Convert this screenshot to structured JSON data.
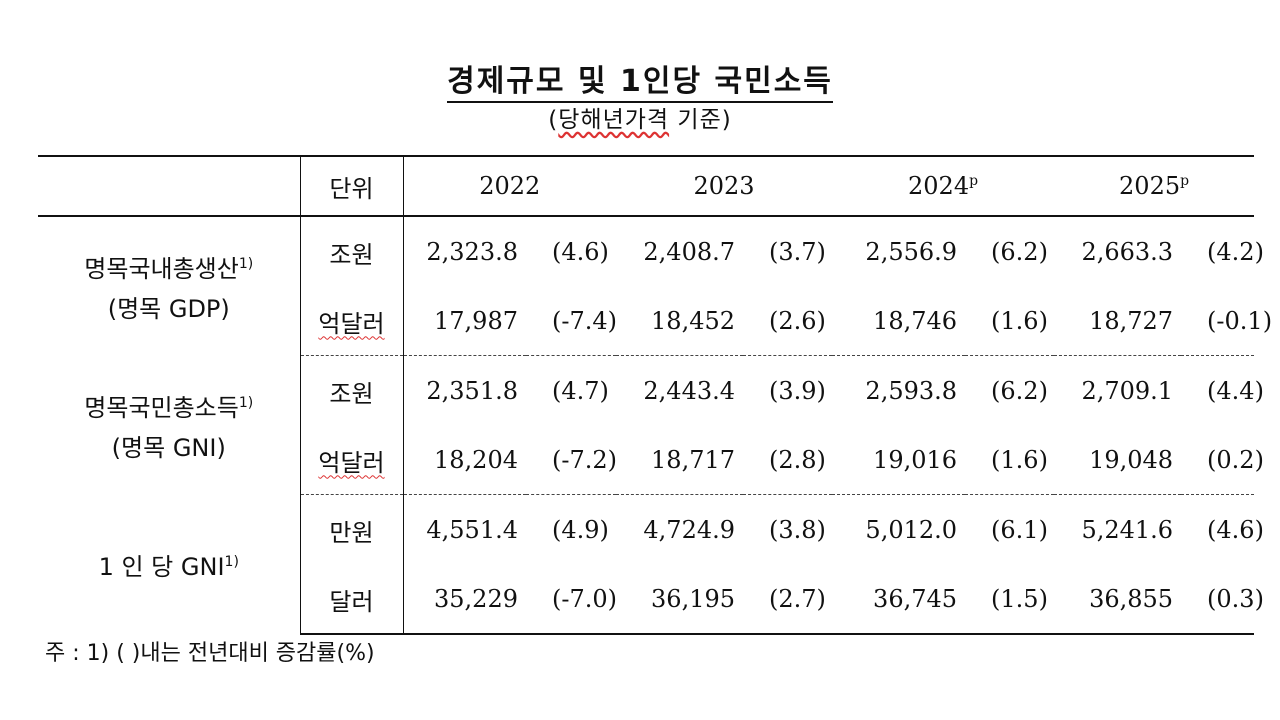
{
  "title": "경제규모 및 1인당 국민소득",
  "subtitle_open": "(",
  "subtitle_word": "당해년가격",
  "subtitle_rest": " 기준)",
  "header": {
    "unit": "단위",
    "years": [
      {
        "year": "2022",
        "mark": ""
      },
      {
        "year": "2023",
        "mark": ""
      },
      {
        "year": "2024",
        "mark": "p"
      },
      {
        "year": "2025",
        "mark": "p"
      }
    ]
  },
  "groups": [
    {
      "label": "명목국내총생산",
      "label_sup": "1)",
      "label2": "(명목 GDP)",
      "rows": [
        {
          "unit": "조원",
          "cells": [
            {
              "value": "2,323.8",
              "change": "(4.6)"
            },
            {
              "value": "2,408.7",
              "change": "(3.7)"
            },
            {
              "value": "2,556.9",
              "change": "(6.2)"
            },
            {
              "value": "2,663.3",
              "change": "(4.2)"
            }
          ]
        },
        {
          "unit": "억달러",
          "cells": [
            {
              "value": "17,987",
              "change": "(-7.4)"
            },
            {
              "value": "18,452",
              "change": "(2.6)"
            },
            {
              "value": "18,746",
              "change": "(1.6)"
            },
            {
              "value": "18,727",
              "change": "(-0.1)"
            }
          ]
        }
      ]
    },
    {
      "label": "명목국민총소득",
      "label_sup": "1)",
      "label2": "(명목 GNI)",
      "rows": [
        {
          "unit": "조원",
          "cells": [
            {
              "value": "2,351.8",
              "change": "(4.7)"
            },
            {
              "value": "2,443.4",
              "change": "(3.9)"
            },
            {
              "value": "2,593.8",
              "change": "(6.2)"
            },
            {
              "value": "2,709.1",
              "change": "(4.4)"
            }
          ]
        },
        {
          "unit": "억달러",
          "cells": [
            {
              "value": "18,204",
              "change": "(-7.2)"
            },
            {
              "value": "18,717",
              "change": "(2.8)"
            },
            {
              "value": "19,016",
              "change": "(1.6)"
            },
            {
              "value": "19,048",
              "change": "(0.2)"
            }
          ]
        }
      ]
    },
    {
      "label": "1 인 당 GNI",
      "label_sup": "1)",
      "label2": "",
      "rows": [
        {
          "unit": "만원",
          "cells": [
            {
              "value": "4,551.4",
              "change": "(4.9)"
            },
            {
              "value": "4,724.9",
              "change": "(3.8)"
            },
            {
              "value": "5,012.0",
              "change": "(6.1)"
            },
            {
              "value": "5,241.6",
              "change": "(4.6)"
            }
          ]
        },
        {
          "unit": "달러",
          "cells": [
            {
              "value": "35,229",
              "change": "(-7.0)"
            },
            {
              "value": "36,195",
              "change": "(2.7)"
            },
            {
              "value": "36,745",
              "change": "(1.5)"
            },
            {
              "value": "36,855",
              "change": "(0.3)"
            }
          ]
        }
      ]
    }
  ],
  "note": "주 : 1) (   )내는 전년대비 증감률(%)"
}
